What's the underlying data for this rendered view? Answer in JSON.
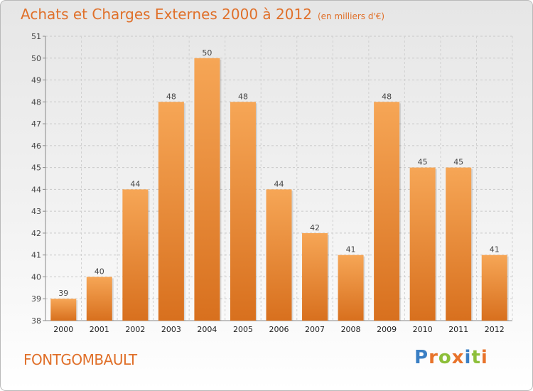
{
  "header": {
    "title": "Achats et Charges Externes 2000 à 2012",
    "unit": "(en milliers d'€)"
  },
  "commune": "FONTGOMBAULT",
  "logo": {
    "text": "Proxiti",
    "letter_colors": [
      "#3a7fc4",
      "#e8732a",
      "#8dbf3a",
      "#e8732a",
      "#3a7fc4",
      "#8dbf3a",
      "#e8732a"
    ]
  },
  "chart_data": {
    "type": "bar",
    "categories": [
      "2000",
      "2001",
      "2002",
      "2003",
      "2004",
      "2005",
      "2006",
      "2007",
      "2008",
      "2009",
      "2010",
      "2011",
      "2012"
    ],
    "values": [
      39,
      40,
      44,
      48,
      50,
      48,
      44,
      42,
      41,
      48,
      45,
      45,
      41
    ],
    "data_labels": [
      "39",
      "40",
      "44",
      "48",
      "50",
      "48",
      "44",
      "42",
      "41",
      "48",
      "45",
      "45",
      "41"
    ],
    "ylim": [
      38,
      51
    ],
    "yticks": [
      38,
      39,
      40,
      41,
      42,
      43,
      44,
      45,
      46,
      47,
      48,
      49,
      50,
      51
    ],
    "grid": true,
    "bar_color": "#f0923e"
  }
}
